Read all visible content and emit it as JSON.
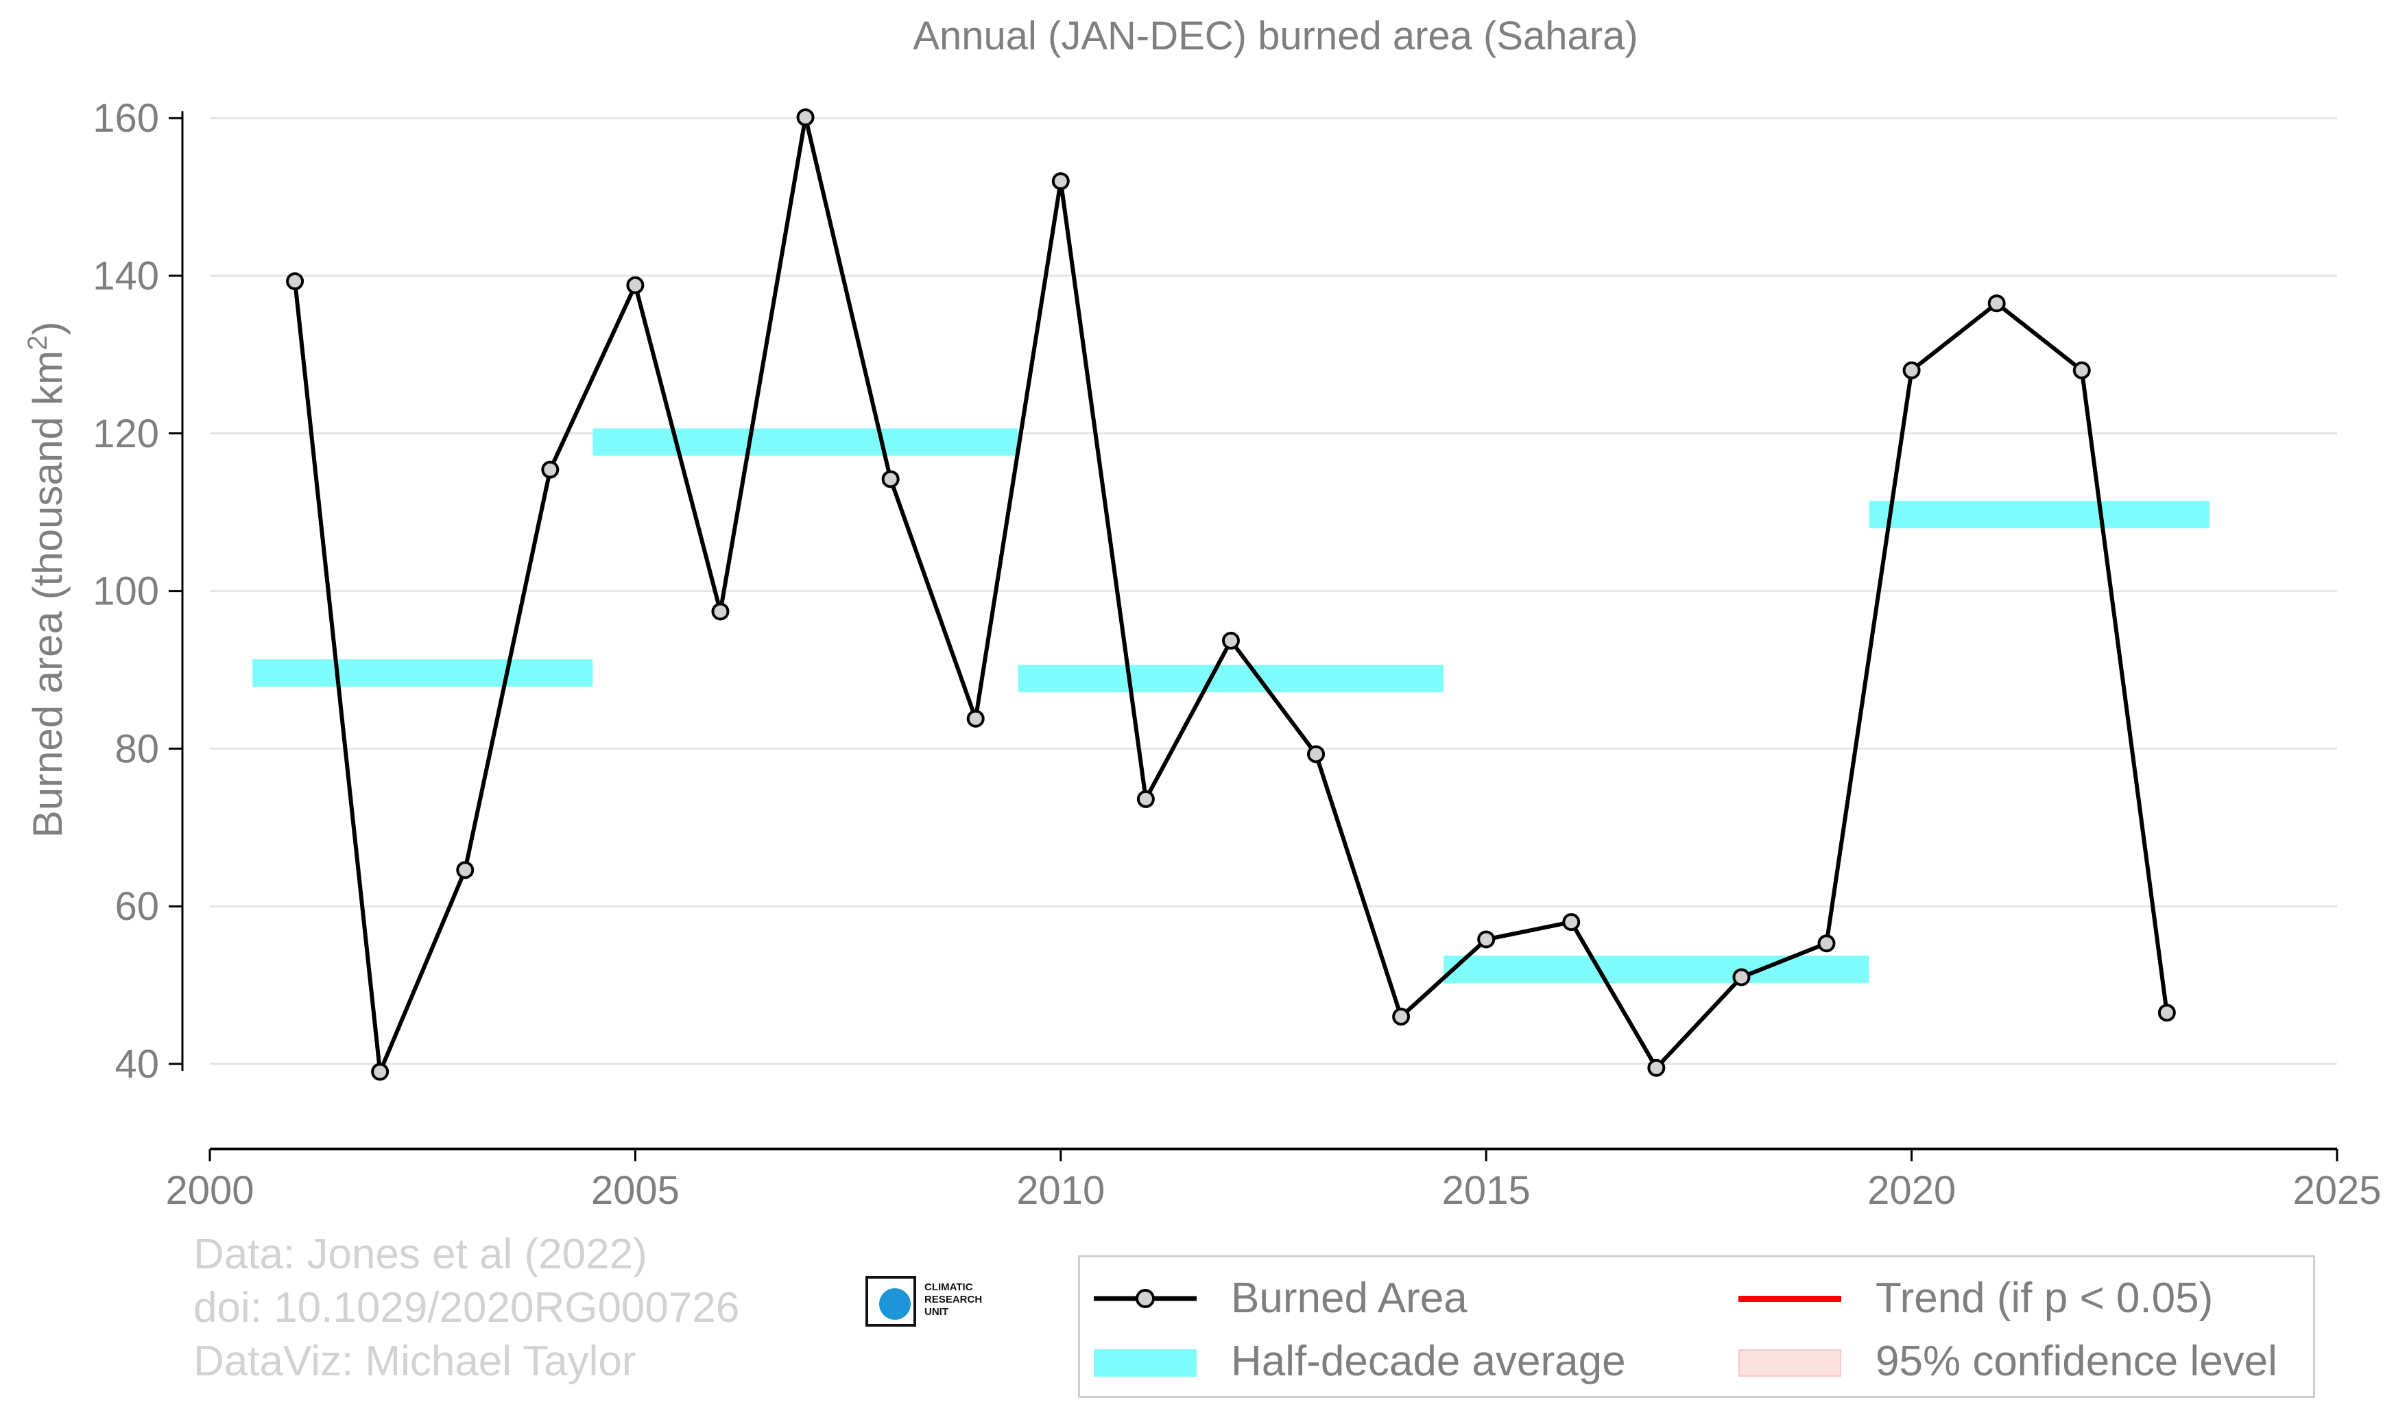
{
  "title": "Annual (JAN-DEC) burned area (Sahara)",
  "ylabel_main": "Burned area (thousand km",
  "ylabel_sup": "2",
  "ylabel_close": ")",
  "credits": {
    "line1": "Data: Jones et al (2022)",
    "line2": "doi: 10.1029/2020RG000726",
    "line3": "DataViz: Michael Taylor"
  },
  "logo": {
    "line1": "CLIMATIC",
    "line2": "RESEARCH",
    "line3": "UNIT",
    "icon": "globe-icon"
  },
  "legend": {
    "burned_area": "Burned Area",
    "half_decade": "Half-decade average",
    "trend": "Trend (if p < 0.05)",
    "confidence": "95% confidence level"
  },
  "colors": {
    "line": "#000000",
    "marker_fill": "#d3d3d3",
    "half_decade": "#7ffdfd",
    "trend": "#ff0000",
    "confidence": "#fde0e0",
    "grid": "#e6e6e6",
    "text": "#7f7f7f"
  },
  "chart_data": {
    "type": "line",
    "title": "Annual (JAN-DEC) burned area (Sahara)",
    "xlabel": "",
    "ylabel": "Burned area (thousand km2)",
    "xlim": [
      2000,
      2025
    ],
    "ylim": [
      30,
      165
    ],
    "x_ticks": [
      2000,
      2005,
      2010,
      2015,
      2020,
      2025
    ],
    "y_ticks": [
      40,
      60,
      80,
      100,
      120,
      140,
      160
    ],
    "grid": "horizontal",
    "legend_position": "bottom-right",
    "series": [
      {
        "name": "Burned Area",
        "x": [
          2001,
          2002,
          2003,
          2004,
          2005,
          2006,
          2007,
          2008,
          2009,
          2010,
          2011,
          2012,
          2013,
          2014,
          2015,
          2016,
          2017,
          2018,
          2019,
          2020,
          2021,
          2022,
          2023
        ],
        "y": [
          139.3,
          39.0,
          64.6,
          115.4,
          138.8,
          97.4,
          160.1,
          114.2,
          83.8,
          152.0,
          73.6,
          93.7,
          79.3,
          46.0,
          55.8,
          58.0,
          39.5,
          51.0,
          55.3,
          128.0,
          136.5,
          128.0,
          46.5
        ]
      }
    ],
    "half_decade_averages": [
      {
        "x_start": 2000.5,
        "x_end": 2004.5,
        "value": 89.6
      },
      {
        "x_start": 2004.5,
        "x_end": 2009.5,
        "value": 118.9
      },
      {
        "x_start": 2009.5,
        "x_end": 2014.5,
        "value": 88.9
      },
      {
        "x_start": 2014.5,
        "x_end": 2019.5,
        "value": 52.0
      },
      {
        "x_start": 2019.5,
        "x_end": 2023.5,
        "value": 109.7
      }
    ]
  }
}
